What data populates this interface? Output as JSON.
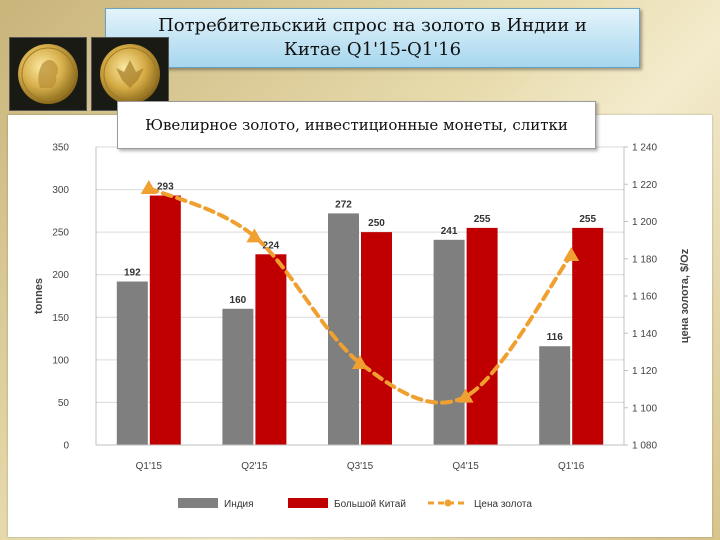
{
  "title": {
    "line1": "Потребительский спрос на золото в Индии и",
    "line2": "Китае Q1'15-Q1'16"
  },
  "subtitle": "Ювелирное золото,  инвестиционные монеты, слитки",
  "colors": {
    "india": "#7f7f7f",
    "china": "#c00000",
    "gold_price": "#f0a030"
  },
  "chart_data": {
    "type": "bar",
    "categories": [
      "Q1'15",
      "Q2'15",
      "Q3'15",
      "Q4'15",
      "Q1'16"
    ],
    "series": [
      {
        "name": "Индия",
        "type": "bar",
        "values": [
          192,
          160,
          272,
          241,
          116
        ],
        "axis": "left"
      },
      {
        "name": "Большой Китай",
        "type": "bar",
        "values": [
          293,
          224,
          250,
          255,
          255
        ],
        "axis": "left"
      },
      {
        "name": "Цена золота",
        "type": "line",
        "style": "dashed",
        "values": [
          1218,
          1192,
          1124,
          1106,
          1182
        ],
        "axis": "right"
      }
    ],
    "ylabel": "tonnes",
    "ylim": [
      0,
      350
    ],
    "yticks": [
      "0",
      "50",
      "100",
      "150",
      "200",
      "250",
      "300",
      "350"
    ],
    "y2label": "цена золота, $/Oz",
    "y2lim": [
      1080,
      1240
    ],
    "y2ticks": [
      "1 080",
      "1 100",
      "1 120",
      "1 140",
      "1 160",
      "1 180",
      "1 200",
      "1 220",
      "1 240"
    ],
    "grid": true,
    "legend": "bottom"
  }
}
